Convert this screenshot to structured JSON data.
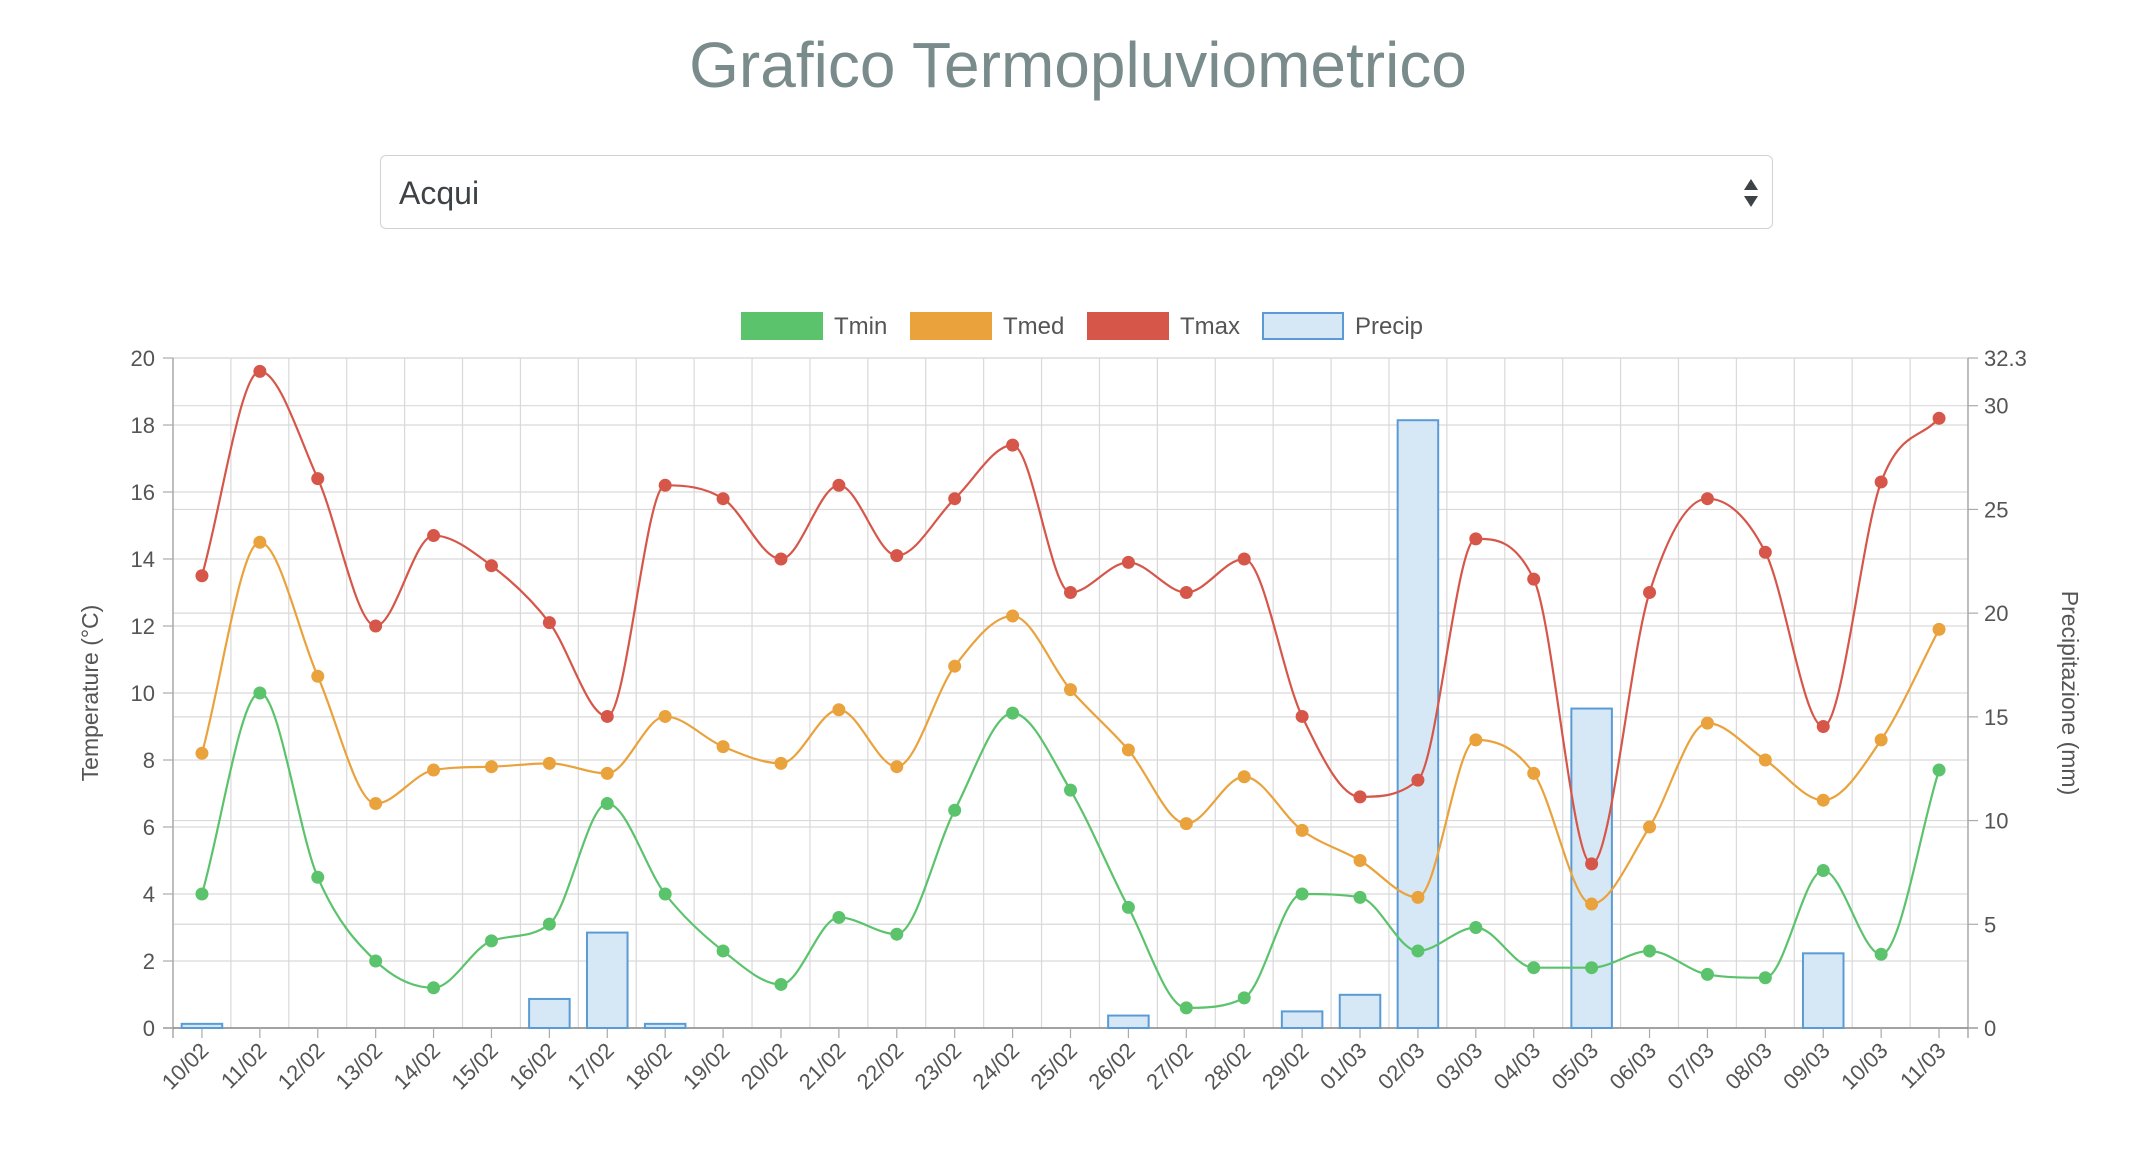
{
  "page": {
    "title": "Grafico Termopluviometrico"
  },
  "station_select": {
    "value": "Acqui",
    "icon": "sort-arrows-icon"
  },
  "colors": {
    "tmin": "#5cc36d",
    "tmed": "#eaa23d",
    "tmax": "#d6574a",
    "precip_fill": "#d6e8f6",
    "precip_stroke": "#5b9bd5",
    "grid": "#d9d9d9",
    "title": "#7a8b8b"
  },
  "chart_data": {
    "type": "line",
    "categories": [
      "10/02",
      "11/02",
      "12/02",
      "13/02",
      "14/02",
      "15/02",
      "16/02",
      "17/02",
      "18/02",
      "19/02",
      "20/02",
      "21/02",
      "22/02",
      "23/02",
      "24/02",
      "25/02",
      "26/02",
      "27/02",
      "28/02",
      "29/02",
      "01/03",
      "02/03",
      "03/03",
      "04/03",
      "05/03",
      "06/03",
      "07/03",
      "08/03",
      "09/03",
      "10/03",
      "11/03"
    ],
    "legend": [
      "Tmin",
      "Tmed",
      "Tmax",
      "Precip"
    ],
    "legend_position": "top-center",
    "grid": true,
    "ylabel": "Temperature (°C)",
    "ylim": [
      0,
      20
    ],
    "yticks": [
      "0",
      "2",
      "4",
      "6",
      "8",
      "10",
      "12",
      "14",
      "16",
      "18",
      "20"
    ],
    "y2label": "Precipitazione (mm)",
    "y2lim": [
      0,
      32.3
    ],
    "y2ticks": [
      "0",
      "5",
      "10",
      "15",
      "20",
      "25",
      "30",
      "32.3"
    ],
    "series": [
      {
        "name": "Tmin",
        "type": "line",
        "axis": "left",
        "values": [
          4.0,
          10.0,
          4.5,
          2.0,
          1.2,
          2.6,
          3.1,
          6.7,
          4.0,
          2.3,
          1.3,
          3.3,
          2.8,
          6.5,
          9.4,
          7.1,
          3.6,
          0.6,
          0.9,
          4.0,
          3.9,
          2.3,
          3.0,
          1.8,
          1.8,
          2.3,
          1.6,
          1.5,
          4.7,
          2.2,
          7.7
        ]
      },
      {
        "name": "Tmed",
        "type": "line",
        "axis": "left",
        "values": [
          8.2,
          14.5,
          10.5,
          6.7,
          7.7,
          7.8,
          7.9,
          7.6,
          9.3,
          8.4,
          7.9,
          9.5,
          7.8,
          10.8,
          12.3,
          10.1,
          8.3,
          6.1,
          7.5,
          5.9,
          5.0,
          3.9,
          8.6,
          7.6,
          3.7,
          6.0,
          9.1,
          8.0,
          6.8,
          8.6,
          11.9
        ]
      },
      {
        "name": "Tmax",
        "type": "line",
        "axis": "left",
        "values": [
          13.5,
          19.6,
          16.4,
          12.0,
          14.7,
          13.8,
          12.1,
          9.3,
          16.2,
          15.8,
          14.0,
          16.2,
          14.1,
          15.8,
          17.4,
          13.0,
          13.9,
          13.0,
          14.0,
          9.3,
          6.9,
          7.4,
          14.6,
          13.4,
          4.9,
          13.0,
          15.8,
          14.2,
          9.0,
          16.3,
          18.2
        ]
      },
      {
        "name": "Precip",
        "type": "bar",
        "axis": "right",
        "values": [
          0.2,
          0,
          0,
          0,
          0,
          0,
          1.4,
          4.6,
          0.2,
          0,
          0,
          0,
          0,
          0,
          0,
          0,
          0.6,
          0,
          0,
          0.8,
          1.6,
          29.3,
          0,
          0,
          15.4,
          0,
          0,
          0,
          3.6,
          0,
          0
        ]
      }
    ]
  }
}
